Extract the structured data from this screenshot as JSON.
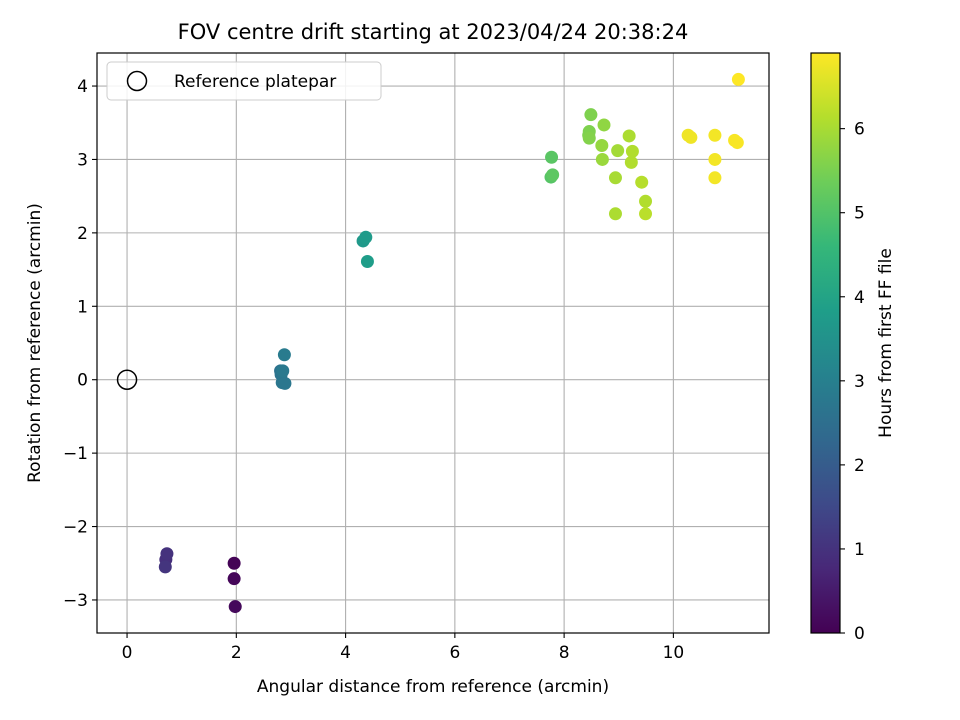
{
  "chart_data": {
    "type": "scatter",
    "title": "FOV centre drift starting at 2023/04/24 20:38:24",
    "xlabel": "Angular distance from reference (arcmin)",
    "ylabel": "Rotation from reference (arcmin)",
    "xlim": [
      -0.55,
      11.75
    ],
    "ylim": [
      -3.45,
      4.45
    ],
    "xticks": [
      0,
      2,
      4,
      6,
      8,
      10
    ],
    "xtick_labels": [
      "0",
      "2",
      "4",
      "6",
      "8",
      "10"
    ],
    "yticks": [
      -3,
      -2,
      -1,
      0,
      1,
      2,
      3,
      4
    ],
    "ytick_labels": [
      "−3",
      "−2",
      "−1",
      "0",
      "1",
      "2",
      "3",
      "4"
    ],
    "grid": true,
    "legend": {
      "position": "top-left",
      "entries": [
        "Reference platepar"
      ]
    },
    "reference_point": {
      "x": 0,
      "y": 0,
      "label": "Reference platepar"
    },
    "colorbar": {
      "label": "Hours from first FF file",
      "colormap": "viridis",
      "range": [
        0,
        6.9
      ],
      "ticks": [
        0,
        1,
        2,
        3,
        4,
        5,
        6
      ],
      "tick_labels": [
        "0",
        "1",
        "2",
        "3",
        "4",
        "5",
        "6"
      ]
    },
    "points": [
      {
        "x": 1.96,
        "y": -2.5,
        "hours": 0.05
      },
      {
        "x": 1.96,
        "y": -2.71,
        "hours": 0.1
      },
      {
        "x": 1.98,
        "y": -3.09,
        "hours": 0.15
      },
      {
        "x": 0.71,
        "y": -2.45,
        "hours": 0.95
      },
      {
        "x": 0.73,
        "y": -2.37,
        "hours": 1.0
      },
      {
        "x": 0.7,
        "y": -2.55,
        "hours": 1.05
      },
      {
        "x": 2.81,
        "y": 0.12,
        "hours": 2.6
      },
      {
        "x": 2.82,
        "y": 0.07,
        "hours": 2.65
      },
      {
        "x": 2.84,
        "y": -0.04,
        "hours": 2.7
      },
      {
        "x": 2.89,
        "y": -0.05,
        "hours": 2.75
      },
      {
        "x": 2.85,
        "y": 0.12,
        "hours": 2.8
      },
      {
        "x": 2.88,
        "y": 0.34,
        "hours": 2.85
      },
      {
        "x": 4.32,
        "y": 1.89,
        "hours": 3.7
      },
      {
        "x": 4.37,
        "y": 1.94,
        "hours": 3.75
      },
      {
        "x": 4.4,
        "y": 1.61,
        "hours": 3.8
      },
      {
        "x": 7.76,
        "y": 2.76,
        "hours": 5.05
      },
      {
        "x": 7.77,
        "y": 3.03,
        "hours": 5.1
      },
      {
        "x": 7.79,
        "y": 2.79,
        "hours": 5.15
      },
      {
        "x": 8.46,
        "y": 3.38,
        "hours": 5.55
      },
      {
        "x": 8.45,
        "y": 3.33,
        "hours": 5.55
      },
      {
        "x": 8.46,
        "y": 3.29,
        "hours": 5.6
      },
      {
        "x": 8.49,
        "y": 3.61,
        "hours": 5.55
      },
      {
        "x": 8.73,
        "y": 3.47,
        "hours": 5.75
      },
      {
        "x": 8.69,
        "y": 3.19,
        "hours": 5.8
      },
      {
        "x": 8.7,
        "y": 3.0,
        "hours": 5.85
      },
      {
        "x": 8.98,
        "y": 3.12,
        "hours": 5.95
      },
      {
        "x": 8.94,
        "y": 2.75,
        "hours": 6.0
      },
      {
        "x": 8.94,
        "y": 2.26,
        "hours": 6.05
      },
      {
        "x": 9.19,
        "y": 3.32,
        "hours": 6.05
      },
      {
        "x": 9.25,
        "y": 3.11,
        "hours": 6.1
      },
      {
        "x": 9.23,
        "y": 2.96,
        "hours": 6.1
      },
      {
        "x": 9.42,
        "y": 2.69,
        "hours": 6.15
      },
      {
        "x": 9.49,
        "y": 2.43,
        "hours": 6.1
      },
      {
        "x": 9.49,
        "y": 2.26,
        "hours": 6.2
      },
      {
        "x": 10.27,
        "y": 3.33,
        "hours": 6.75
      },
      {
        "x": 10.32,
        "y": 3.3,
        "hours": 6.75
      },
      {
        "x": 10.76,
        "y": 3.33,
        "hours": 6.8
      },
      {
        "x": 10.76,
        "y": 3.0,
        "hours": 6.8
      },
      {
        "x": 10.76,
        "y": 2.75,
        "hours": 6.8
      },
      {
        "x": 11.12,
        "y": 3.26,
        "hours": 6.85
      },
      {
        "x": 11.17,
        "y": 3.23,
        "hours": 6.85
      },
      {
        "x": 11.19,
        "y": 4.09,
        "hours": 6.9
      }
    ]
  }
}
